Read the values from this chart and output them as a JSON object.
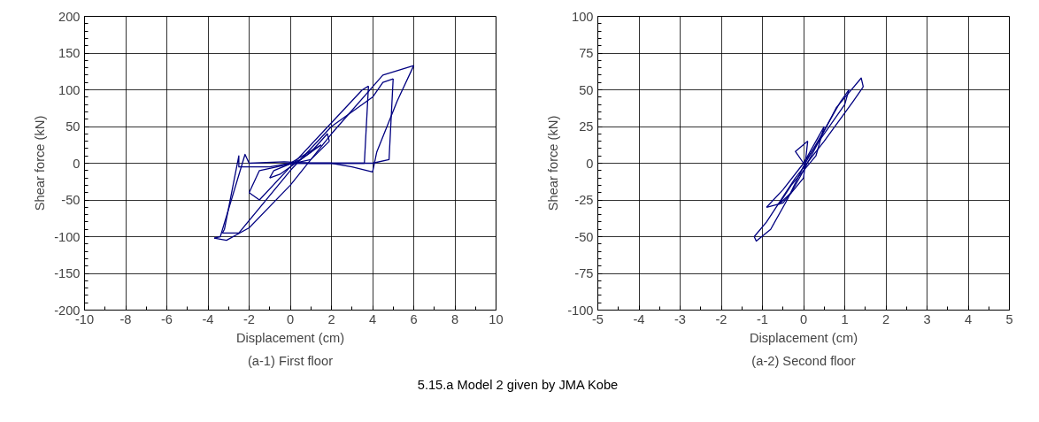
{
  "chart_data": [
    {
      "type": "line",
      "xlabel": "Displacement (cm)",
      "ylabel": "Shear force (kN)",
      "annotations": [
        "(a-1) First floor",
        "5.15.a Model 2 given by JMA Kobe"
      ],
      "xlim": [
        -10,
        10
      ],
      "ylim": [
        -200,
        200
      ],
      "xticks": [
        -10,
        -8,
        -6,
        -4,
        -2,
        0,
        2,
        4,
        6,
        8,
        10
      ],
      "yticks": [
        -200,
        -150,
        -100,
        -50,
        0,
        50,
        100,
        150,
        200
      ],
      "grid": true,
      "line_style": "solid",
      "series": [
        {
          "color": "#000080",
          "x": [
            0,
            1.2,
            1.5
          ],
          "values": [
            0,
            20,
            25
          ]
        },
        {
          "color": "#000080",
          "x": [
            1.5,
            0.5,
            -0.8,
            -1
          ],
          "values": [
            25,
            5,
            -10,
            -20
          ]
        },
        {
          "color": "#000080",
          "x": [
            -1,
            -0.5,
            1,
            1.8,
            1.9
          ],
          "values": [
            -20,
            -15,
            15,
            40,
            30
          ]
        },
        {
          "color": "#000080",
          "x": [
            1.9,
            1,
            -1.5,
            -2
          ],
          "values": [
            30,
            5,
            -10,
            -40
          ]
        },
        {
          "color": "#000080",
          "x": [
            -2,
            -1.5,
            0,
            1.5,
            3.5,
            3.8
          ],
          "values": [
            -40,
            -50,
            -5,
            40,
            100,
            105
          ]
        },
        {
          "color": "#000080",
          "x": [
            3.8,
            3.6,
            2,
            0,
            -1,
            -2.5,
            -2.5,
            -3.2,
            -3.3
          ],
          "values": [
            105,
            0,
            0,
            0,
            -5,
            -5,
            10,
            -90,
            -95
          ]
        },
        {
          "color": "#000080",
          "x": [
            -3.3,
            -2.5,
            0,
            2,
            4,
            4.5,
            5
          ],
          "values": [
            -95,
            -95,
            -10,
            50,
            90,
            110,
            115
          ]
        },
        {
          "color": "#000080",
          "x": [
            5,
            4.8,
            4,
            1,
            -0.3,
            -2,
            -2.2,
            -3.4,
            -3.7
          ],
          "values": [
            115,
            5,
            0,
            0,
            2,
            0,
            12,
            -100,
            -102
          ]
        },
        {
          "color": "#000080",
          "x": [
            -3.7,
            -3.1,
            -2,
            0,
            2,
            4.5,
            6
          ],
          "values": [
            -102,
            -105,
            -88,
            -30,
            40,
            120,
            133
          ]
        },
        {
          "color": "#000080",
          "x": [
            6,
            5.2,
            4.2,
            4,
            3,
            2,
            0
          ],
          "values": [
            133,
            85,
            15,
            -12,
            -5,
            0,
            0
          ]
        }
      ]
    },
    {
      "type": "line",
      "xlabel": "Displacement (cm)",
      "ylabel": "Shear force (kN)",
      "annotations": [
        "(a-2) Second floor"
      ],
      "xlim": [
        -5,
        5
      ],
      "ylim": [
        -100,
        100
      ],
      "xticks": [
        -5,
        -4,
        -3,
        -2,
        -1,
        0,
        1,
        2,
        3,
        4,
        5
      ],
      "yticks": [
        -100,
        -75,
        -50,
        -25,
        0,
        25,
        50,
        75,
        100
      ],
      "grid": true,
      "line_style": "solid",
      "series": [
        {
          "color": "#000080",
          "x": [
            0,
            0.3,
            0.5
          ],
          "values": [
            0,
            15,
            25
          ]
        },
        {
          "color": "#000080",
          "x": [
            0.5,
            0.3,
            -0.3,
            -0.6
          ],
          "values": [
            25,
            5,
            -15,
            -28
          ]
        },
        {
          "color": "#000080",
          "x": [
            -0.6,
            -0.3,
            0,
            0.8,
            1.1,
            1.4,
            1.45
          ],
          "values": [
            -28,
            -20,
            -5,
            38,
            48,
            58,
            52
          ]
        },
        {
          "color": "#000080",
          "x": [
            1.45,
            1.2,
            0.5,
            -0.2,
            -0.9,
            -1.2
          ],
          "values": [
            52,
            42,
            15,
            -10,
            -40,
            -50
          ]
        },
        {
          "color": "#000080",
          "x": [
            -1.2,
            -1.15,
            -0.8,
            -0.4,
            0,
            0.9,
            1.1
          ],
          "values": [
            -50,
            -53,
            -45,
            -25,
            -2,
            42,
            50
          ]
        },
        {
          "color": "#000080",
          "x": [
            1.1,
            1.0,
            0,
            -0.5,
            -0.9
          ],
          "values": [
            50,
            40,
            0,
            -18,
            -30
          ]
        },
        {
          "color": "#000080",
          "x": [
            -0.9,
            -0.5,
            0,
            0.1
          ],
          "values": [
            -30,
            -27,
            -10,
            15
          ]
        },
        {
          "color": "#000080",
          "x": [
            0.1,
            -0.2,
            0
          ],
          "values": [
            15,
            8,
            0
          ]
        }
      ]
    }
  ]
}
